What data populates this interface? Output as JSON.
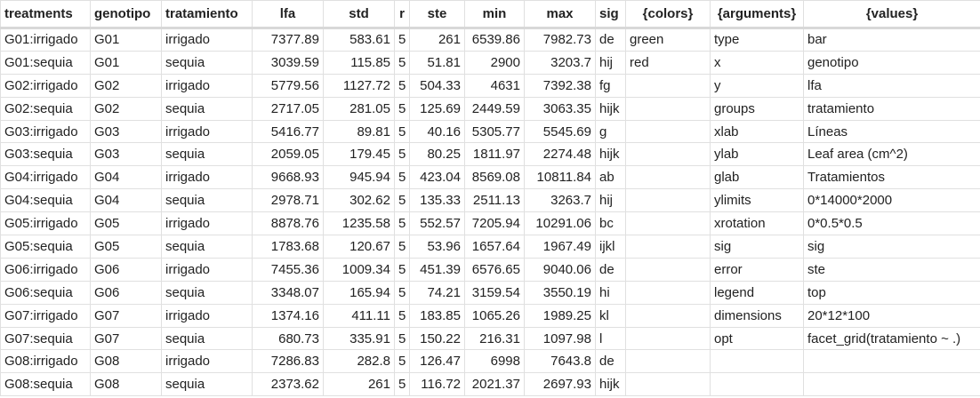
{
  "headers": [
    "treatments",
    "genotipo",
    "tratamiento",
    "lfa",
    "std",
    "r",
    "ste",
    "min",
    "max",
    "sig",
    "{colors}",
    "{arguments}",
    "{values}"
  ],
  "rows": [
    [
      "G01:irrigado",
      "G01",
      "irrigado",
      "7377.89",
      "583.61",
      "5",
      "261",
      "6539.86",
      "7982.73",
      "de",
      "green",
      "type",
      "bar"
    ],
    [
      "G01:sequia",
      "G01",
      "sequia",
      "3039.59",
      "115.85",
      "5",
      "51.81",
      "2900",
      "3203.7",
      "hij",
      "red",
      "x",
      "genotipo"
    ],
    [
      "G02:irrigado",
      "G02",
      "irrigado",
      "5779.56",
      "1127.72",
      "5",
      "504.33",
      "4631",
      "7392.38",
      "fg",
      "",
      "y",
      "lfa"
    ],
    [
      "G02:sequia",
      "G02",
      "sequia",
      "2717.05",
      "281.05",
      "5",
      "125.69",
      "2449.59",
      "3063.35",
      "hijk",
      "",
      "groups",
      "tratamiento"
    ],
    [
      "G03:irrigado",
      "G03",
      "irrigado",
      "5416.77",
      "89.81",
      "5",
      "40.16",
      "5305.77",
      "5545.69",
      "g",
      "",
      "xlab",
      "Líneas"
    ],
    [
      "G03:sequia",
      "G03",
      "sequia",
      "2059.05",
      "179.45",
      "5",
      "80.25",
      "1811.97",
      "2274.48",
      "hijk",
      "",
      "ylab",
      "Leaf area (cm^2)"
    ],
    [
      "G04:irrigado",
      "G04",
      "irrigado",
      "9668.93",
      "945.94",
      "5",
      "423.04",
      "8569.08",
      "10811.84",
      "ab",
      "",
      "glab",
      "Tratamientos"
    ],
    [
      "G04:sequia",
      "G04",
      "sequia",
      "2978.71",
      "302.62",
      "5",
      "135.33",
      "2511.13",
      "3263.7",
      "hij",
      "",
      "ylimits",
      "0*14000*2000"
    ],
    [
      "G05:irrigado",
      "G05",
      "irrigado",
      "8878.76",
      "1235.58",
      "5",
      "552.57",
      "7205.94",
      "10291.06",
      "bc",
      "",
      "xrotation",
      "0*0.5*0.5"
    ],
    [
      "G05:sequia",
      "G05",
      "sequia",
      "1783.68",
      "120.67",
      "5",
      "53.96",
      "1657.64",
      "1967.49",
      "ijkl",
      "",
      "sig",
      "sig"
    ],
    [
      "G06:irrigado",
      "G06",
      "irrigado",
      "7455.36",
      "1009.34",
      "5",
      "451.39",
      "6576.65",
      "9040.06",
      "de",
      "",
      "error",
      "ste"
    ],
    [
      "G06:sequia",
      "G06",
      "sequia",
      "3348.07",
      "165.94",
      "5",
      "74.21",
      "3159.54",
      "3550.19",
      "hi",
      "",
      "legend",
      "top"
    ],
    [
      "G07:irrigado",
      "G07",
      "irrigado",
      "1374.16",
      "411.11",
      "5",
      "183.85",
      "1065.26",
      "1989.25",
      "kl",
      "",
      "dimensions",
      "20*12*100"
    ],
    [
      "G07:sequia",
      "G07",
      "sequia",
      "680.73",
      "335.91",
      "5",
      "150.22",
      "216.31",
      "1097.98",
      "l",
      "",
      "opt",
      "facet_grid(tratamiento ~ .)"
    ],
    [
      "G08:irrigado",
      "G08",
      "irrigado",
      "7286.83",
      "282.8",
      "5",
      "126.47",
      "6998",
      "7643.8",
      "de",
      "",
      "",
      ""
    ],
    [
      "G08:sequia",
      "G08",
      "sequia",
      "2373.62",
      "261",
      "5",
      "116.72",
      "2021.37",
      "2697.93",
      "hijk",
      "",
      "",
      ""
    ]
  ]
}
